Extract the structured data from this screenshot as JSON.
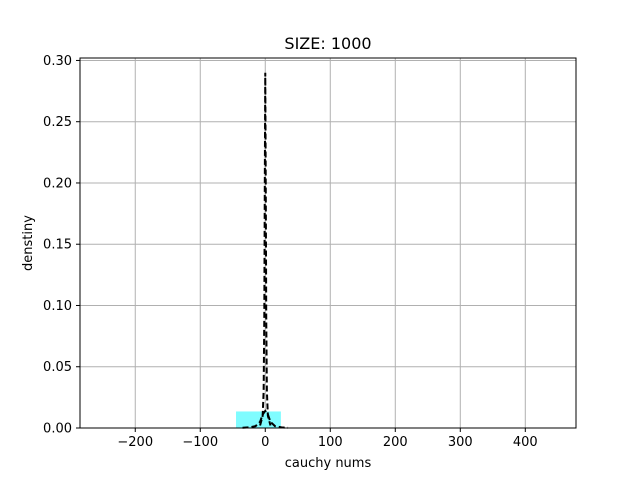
{
  "chart_data": {
    "type": "histogram",
    "title": "SIZE: 1000",
    "xlabel": "cauchy nums",
    "ylabel": "denstiny",
    "xlim": [
      -285,
      478
    ],
    "ylim": [
      0,
      0.302
    ],
    "x_ticks": [
      -200,
      -100,
      0,
      100,
      200,
      300,
      400
    ],
    "x_tick_labels": [
      "−200",
      "−100",
      "0",
      "100",
      "200",
      "300",
      "400"
    ],
    "y_ticks": [
      0.0,
      0.05,
      0.1,
      0.15,
      0.2,
      0.25,
      0.3
    ],
    "y_tick_labels": [
      "0.00",
      "0.05",
      "0.10",
      "0.15",
      "0.20",
      "0.25",
      "0.30"
    ],
    "grid": true,
    "histogram": {
      "color": "#7ffcff",
      "bins": [
        {
          "x0": -45,
          "x1": 24,
          "density": 0.0135
        },
        {
          "x0": 24,
          "x1": 448,
          "density": 0.0003
        }
      ]
    },
    "density_curves": [
      {
        "style": "dashed",
        "color": "#000000",
        "x": [
          -8,
          -4,
          -2.5,
          -1.5,
          -0.8,
          0,
          0.8,
          1.5,
          2.5,
          4,
          8
        ],
        "y": [
          0.002,
          0.01,
          0.03,
          0.09,
          0.19,
          0.29,
          0.19,
          0.09,
          0.03,
          0.01,
          0.002
        ]
      },
      {
        "style": "dashed",
        "color": "#000000",
        "x": [
          -35,
          -25,
          -15,
          -8,
          -4,
          0,
          4,
          8,
          15,
          25,
          35
        ],
        "y": [
          0.0002,
          0.0005,
          0.0015,
          0.005,
          0.011,
          0.014,
          0.011,
          0.005,
          0.0015,
          0.0005,
          0.0002
        ]
      }
    ]
  }
}
